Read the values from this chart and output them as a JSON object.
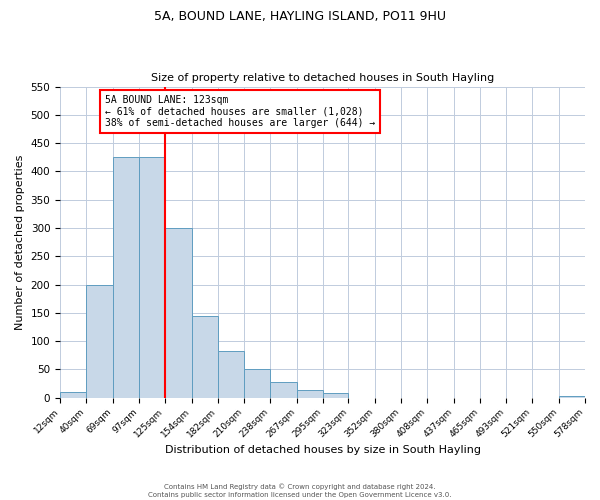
{
  "title": "5A, BOUND LANE, HAYLING ISLAND, PO11 9HU",
  "subtitle": "Size of property relative to detached houses in South Hayling",
  "xlabel": "Distribution of detached houses by size in South Hayling",
  "ylabel": "Number of detached properties",
  "bin_edges": [
    12,
    40,
    69,
    97,
    125,
    154,
    182,
    210,
    238,
    267,
    295,
    323,
    352,
    380,
    408,
    437,
    465,
    493,
    521,
    550,
    578
  ],
  "bar_heights": [
    10,
    200,
    425,
    425,
    300,
    145,
    82,
    50,
    27,
    14,
    9,
    0,
    0,
    0,
    0,
    0,
    0,
    0,
    0,
    3
  ],
  "bar_color": "#c8d8e8",
  "bar_edgecolor": "#5f9dc0",
  "vline_x": 125,
  "vline_color": "red",
  "annotation_title": "5A BOUND LANE: 123sqm",
  "annotation_line1": "← 61% of detached houses are smaller (1,028)",
  "annotation_line2": "38% of semi-detached houses are larger (644) →",
  "ylim": [
    0,
    550
  ],
  "yticks": [
    0,
    50,
    100,
    150,
    200,
    250,
    300,
    350,
    400,
    450,
    500,
    550
  ],
  "tick_labels": [
    "12sqm",
    "40sqm",
    "69sqm",
    "97sqm",
    "125sqm",
    "154sqm",
    "182sqm",
    "210sqm",
    "238sqm",
    "267sqm",
    "295sqm",
    "323sqm",
    "352sqm",
    "380sqm",
    "408sqm",
    "437sqm",
    "465sqm",
    "493sqm",
    "521sqm",
    "550sqm",
    "578sqm"
  ],
  "footer_line1": "Contains HM Land Registry data © Crown copyright and database right 2024.",
  "footer_line2": "Contains public sector information licensed under the Open Government Licence v3.0.",
  "background_color": "#ffffff",
  "grid_color": "#c0ccdd"
}
